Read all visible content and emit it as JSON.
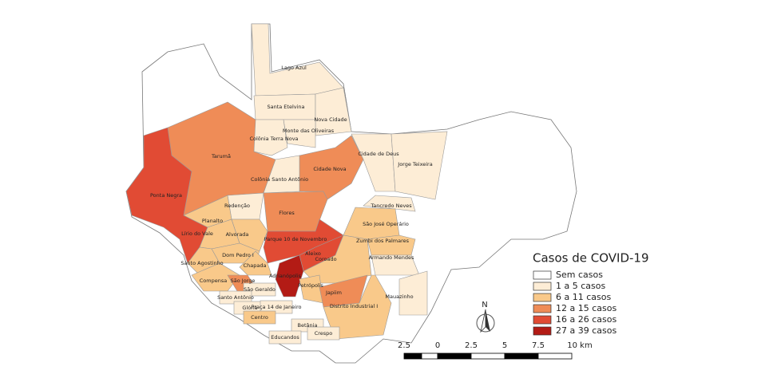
{
  "legend": {
    "title": "Casos de COVID-19",
    "items": [
      {
        "label": "Sem casos",
        "color": "#ffffff"
      },
      {
        "label": "1 a 5 casos",
        "color": "#fdedd6"
      },
      {
        "label": "6 a 11 casos",
        "color": "#f9c98a"
      },
      {
        "label": "12 a 15 casos",
        "color": "#ef8c57"
      },
      {
        "label": "16 a 26 casos",
        "color": "#e14b34"
      },
      {
        "label": "27 a 39 casos",
        "color": "#b31b15"
      }
    ]
  },
  "neighborhoods": [
    {
      "label": "Lago Azul",
      "class": 1
    },
    {
      "label": "Santa Etelvina",
      "class": 1
    },
    {
      "label": "Nova Cidade",
      "class": 1
    },
    {
      "label": "Monte das Oliveiras",
      "class": 1
    },
    {
      "label": "Colônia Terra Nova",
      "class": 1
    },
    {
      "label": "Cidade de Deus",
      "class": 1
    },
    {
      "label": "Jorge Teixeira",
      "class": 1
    },
    {
      "label": "Tarumã",
      "class": 3
    },
    {
      "label": "Cidade Nova",
      "class": 3
    },
    {
      "label": "Colônia Santo Antônio",
      "class": 1
    },
    {
      "label": "Ponta Negra",
      "class": 4
    },
    {
      "label": "Redenção",
      "class": 1
    },
    {
      "label": "Tancredo Neves",
      "class": 1
    },
    {
      "label": "Flores",
      "class": 3
    },
    {
      "label": "Planalto",
      "class": 2
    },
    {
      "label": "São José Operário",
      "class": 2
    },
    {
      "label": "Lírio do Vale",
      "class": 2
    },
    {
      "label": "Alvorada",
      "class": 2
    },
    {
      "label": "Parque 10 de Novembro",
      "class": 4
    },
    {
      "label": "Zumbi dos Palmares",
      "class": 2
    },
    {
      "label": "Aleixo",
      "class": 4
    },
    {
      "label": "Dom Pedro I",
      "class": 2
    },
    {
      "label": "Coroado",
      "class": 2
    },
    {
      "label": "Armando Mendes",
      "class": 1
    },
    {
      "label": "Santo Agostinho",
      "class": 2
    },
    {
      "label": "Chapada",
      "class": 2
    },
    {
      "label": "Compensa",
      "class": 2
    },
    {
      "label": "São Jorge",
      "class": 3
    },
    {
      "label": "Adrianópolis",
      "class": 5
    },
    {
      "label": "São Geraldo",
      "class": 1
    },
    {
      "label": "Petrópolis",
      "class": 2
    },
    {
      "label": "Japiim",
      "class": 3
    },
    {
      "label": "Mauazinho",
      "class": 1
    },
    {
      "label": "Santo Antônio",
      "class": 1
    },
    {
      "label": "Distrito Industrial I",
      "class": 2
    },
    {
      "label": "Glória",
      "class": 1
    },
    {
      "label": "Praça 14 de Janeiro",
      "class": 1
    },
    {
      "label": "Centro",
      "class": 2
    },
    {
      "label": "Betânia",
      "class": 1
    },
    {
      "label": "Crespo",
      "class": 1
    },
    {
      "label": "Educandos",
      "class": 1
    }
  ],
  "scale_bar": {
    "labels": [
      "2.5",
      "0",
      "2.5",
      "5",
      "7.5",
      "10 km"
    ]
  },
  "north_arrow": {
    "label": "N"
  }
}
